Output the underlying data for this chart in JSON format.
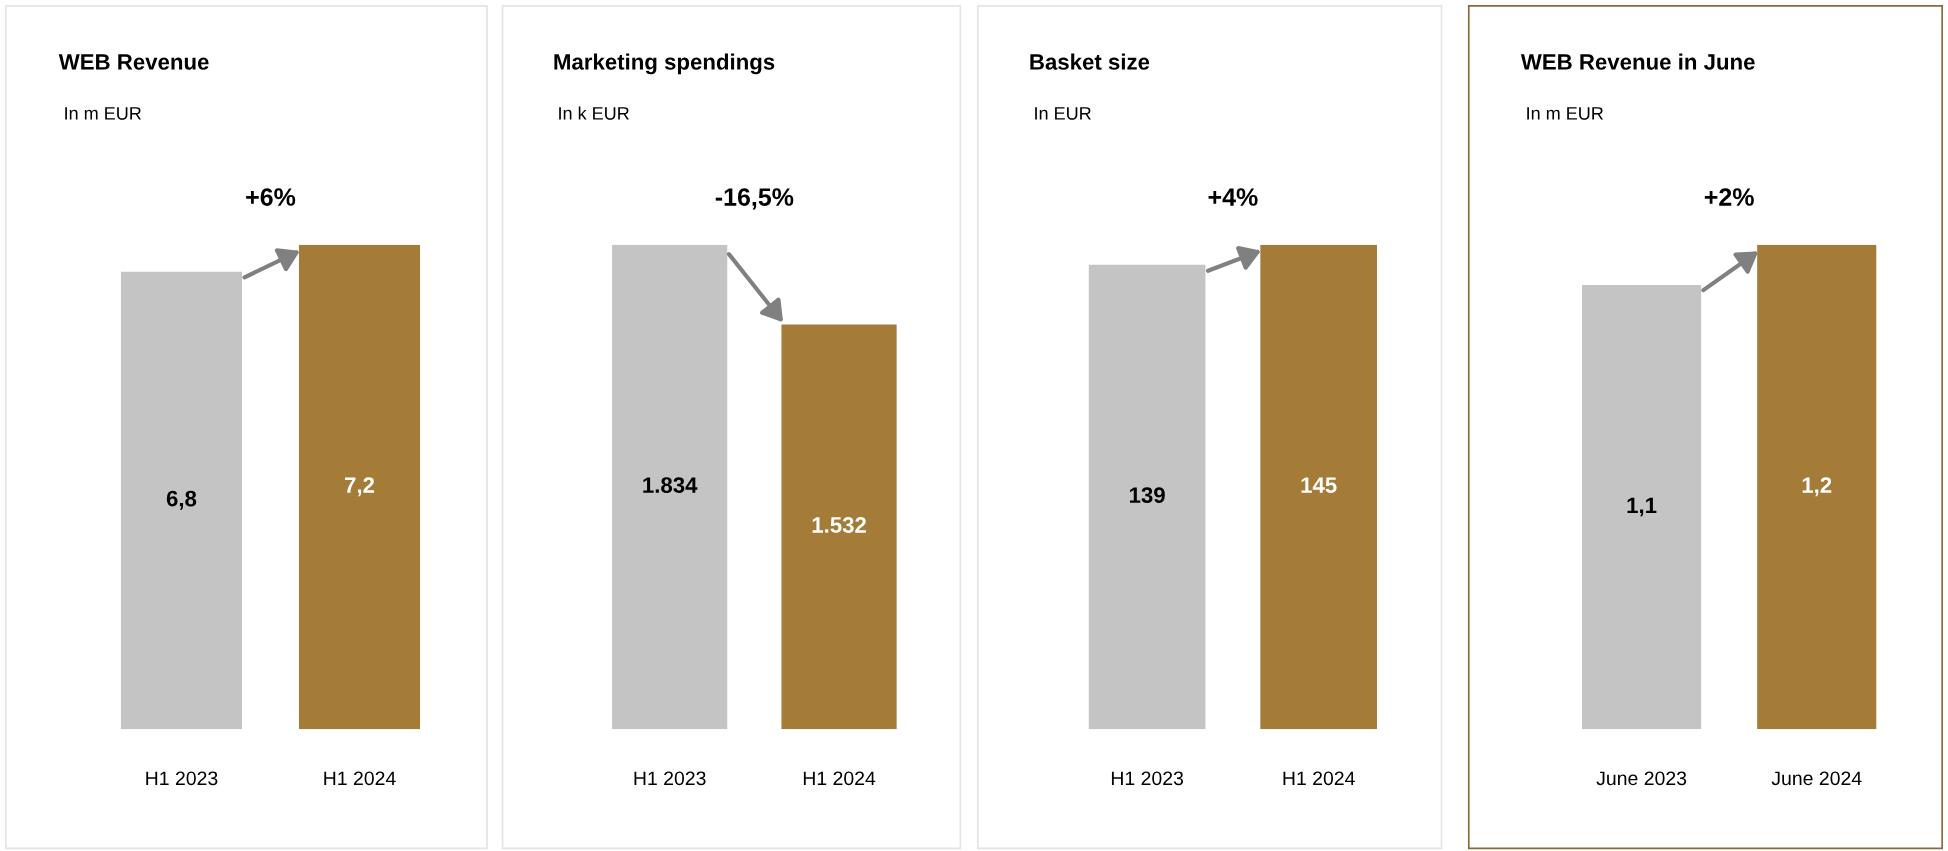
{
  "chart_data": [
    {
      "type": "bar",
      "title": "WEB Revenue",
      "subtitle": "In m EUR",
      "categories": [
        "H1 2023",
        "H1 2024"
      ],
      "values": [
        6.8,
        7.2
      ],
      "value_labels": [
        "6,8",
        "7,2"
      ],
      "colors": [
        "#c4c4c4",
        "#a47c38"
      ],
      "annotations": [
        "+6%"
      ]
    },
    {
      "type": "bar",
      "title": "Marketing spendings",
      "subtitle": "In k EUR",
      "categories": [
        "H1 2023",
        "H1 2024"
      ],
      "values": [
        1834,
        1532
      ],
      "value_labels": [
        "1.834",
        "1.532"
      ],
      "colors": [
        "#c4c4c4",
        "#a47c38"
      ],
      "annotations": [
        "-16,5%"
      ]
    },
    {
      "type": "bar",
      "title": "Basket size",
      "subtitle": "In EUR",
      "categories": [
        "H1 2023",
        "H1 2024"
      ],
      "values": [
        139,
        145
      ],
      "value_labels": [
        "139",
        "145"
      ],
      "colors": [
        "#c4c4c4",
        "#a47c38"
      ],
      "annotations": [
        "+4%"
      ]
    },
    {
      "type": "bar",
      "title": "WEB Revenue in June",
      "subtitle": "In m EUR",
      "categories": [
        "June 2023",
        "June 2024"
      ],
      "values": [
        1.1,
        1.2
      ],
      "value_labels": [
        "1,1",
        "1,2"
      ],
      "colors": [
        "#c4c4c4",
        "#a47c38"
      ],
      "annotations": [
        "+2%"
      ]
    }
  ]
}
